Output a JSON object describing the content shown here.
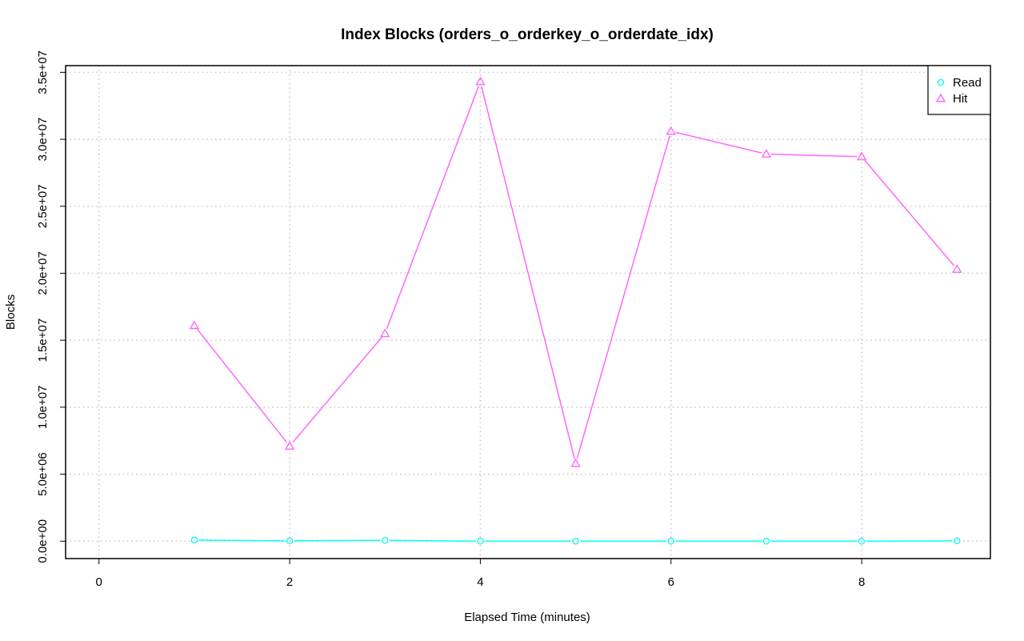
{
  "chart_data": {
    "type": "line",
    "title": "Index Blocks (orders_o_orderkey_o_orderdate_idx)",
    "xlabel": "Elapsed Time (minutes)",
    "ylabel": "Blocks",
    "xlim": [
      -0.35,
      9.35
    ],
    "ylim": [
      -1300000,
      35500000
    ],
    "xticks": [
      0,
      2,
      4,
      6,
      8
    ],
    "xtick_labels": [
      "0",
      "2",
      "4",
      "6",
      "8"
    ],
    "yticks": [
      0,
      5000000,
      10000000,
      15000000,
      20000000,
      25000000,
      30000000,
      35000000
    ],
    "ytick_labels": [
      "0.0e+00",
      "5.0e+06",
      "1.0e+07",
      "1.5e+07",
      "2.0e+07",
      "2.5e+07",
      "3.0e+07",
      "3.5e+07"
    ],
    "grid": true,
    "legend_position": "top-right",
    "x": [
      1,
      2,
      3,
      4,
      5,
      6,
      7,
      8,
      9
    ],
    "series": [
      {
        "name": "Read",
        "marker": "circle",
        "color": "#00ffff",
        "values": [
          80000,
          20000,
          60000,
          0,
          0,
          0,
          0,
          0,
          20000
        ]
      },
      {
        "name": "Hit",
        "marker": "triangle",
        "color": "#ff66ff",
        "values": [
          16100000,
          7100000,
          15500000,
          34300000,
          5800000,
          30600000,
          28900000,
          28700000,
          20300000
        ]
      }
    ]
  }
}
